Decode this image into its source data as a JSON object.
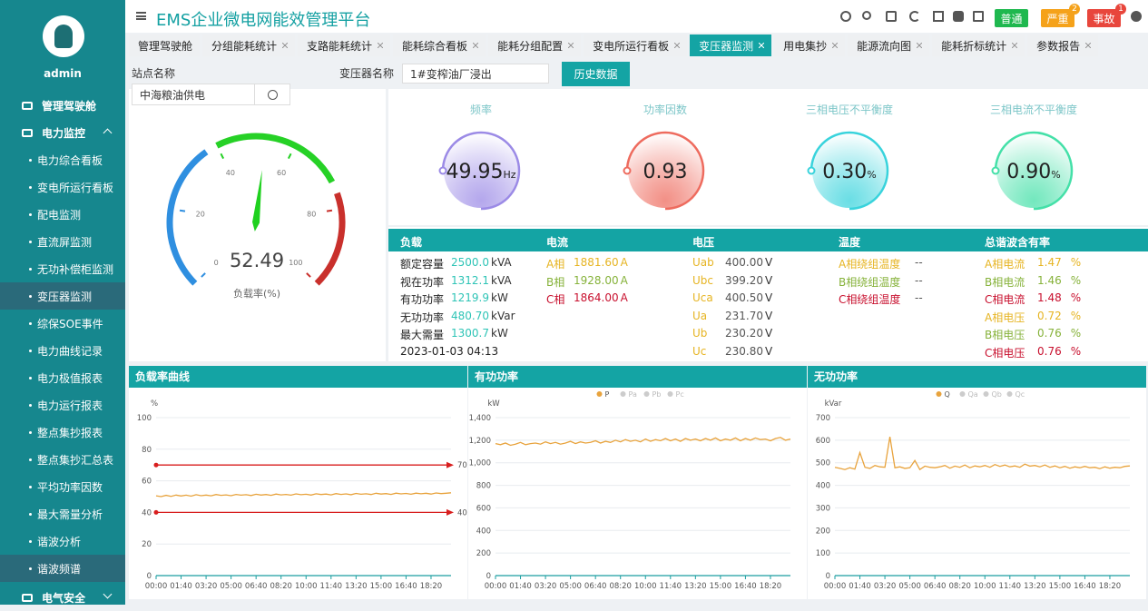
{
  "sidebar": {
    "user": "admin",
    "menu": [
      {
        "label": "管理驾驶舱",
        "level": 1
      },
      {
        "label": "电力监控",
        "level": 1,
        "expanded": true
      },
      {
        "label": "电力综合看板",
        "level": 2
      },
      {
        "label": "变电所运行看板",
        "level": 2
      },
      {
        "label": "配电监测",
        "level": 2
      },
      {
        "label": "直流屏监测",
        "level": 2
      },
      {
        "label": "无功补偿柜监测",
        "level": 2
      },
      {
        "label": "变压器监测",
        "level": 2,
        "highlighted": true
      },
      {
        "label": "综保SOE事件",
        "level": 2
      },
      {
        "label": "电力曲线记录",
        "level": 2
      },
      {
        "label": "电力极值报表",
        "level": 2
      },
      {
        "label": "电力运行报表",
        "level": 2
      },
      {
        "label": "整点集抄报表",
        "level": 2
      },
      {
        "label": "整点集抄汇总表",
        "level": 2
      },
      {
        "label": "平均功率因数",
        "level": 2
      },
      {
        "label": "最大需量分析",
        "level": 2
      },
      {
        "label": "谐波分析",
        "level": 2
      },
      {
        "label": "谐波频谱",
        "level": 2,
        "highlighted": true
      },
      {
        "label": "电气安全",
        "level": 1,
        "expanded": false
      }
    ]
  },
  "header": {
    "title": "EMS企业微电网能效管理平台",
    "buttons": [
      {
        "label": "普通",
        "color": "#1fb84f"
      },
      {
        "label": "严重",
        "color": "#f5a21a",
        "badge": 2
      },
      {
        "label": "事故",
        "color": "#e8463c",
        "badge": 1
      }
    ]
  },
  "tabs": {
    "items": [
      "管理驾驶舱",
      "分组能耗统计",
      "支路能耗统计",
      "能耗综合看板",
      "能耗分组配置",
      "变电所运行看板",
      "变压器监测",
      "用电集抄",
      "能源流向图",
      "能耗折标统计",
      "参数报告"
    ],
    "active": 6
  },
  "filters": {
    "station_label": "站点名称",
    "station_value": "中海粮油供电",
    "transformer_label": "变压器名称",
    "transformer_value": "1#变榨油厂浸出",
    "history_button": "历史数据"
  },
  "gauge": {
    "value": 52.49,
    "label": "负载率(%)",
    "min": 0,
    "max": 100,
    "ticks": [
      0,
      20,
      40,
      60,
      80,
      100
    ]
  },
  "indicators": [
    {
      "title": "频率",
      "value": "49.95",
      "unit": "Hz",
      "color": "#9b8ae6"
    },
    {
      "title": "功率因数",
      "value": "0.93",
      "color": "#ee6b5e"
    },
    {
      "title": "三相电压不平衡度",
      "value": "0.30",
      "unit": "%",
      "color": "#38d3dc"
    },
    {
      "title": "三相电流不平衡度",
      "value": "0.90",
      "unit": "%",
      "color": "#44e0a8"
    }
  ],
  "table": {
    "headers": [
      "负载",
      "电流",
      "电压",
      "温度",
      "总谐波含有率"
    ],
    "columns": [
      [
        {
          "label": "额定容量",
          "value": "2500.0",
          "unit": "kVA"
        },
        {
          "label": "视在功率",
          "value": "1312.1",
          "unit": "kVA"
        },
        {
          "label": "有功功率",
          "value": "1219.9",
          "unit": "kW"
        },
        {
          "label": "无功功率",
          "value": "480.70",
          "unit": "kVar"
        },
        {
          "label": "最大需量",
          "value": "1300.7",
          "unit": "kW"
        },
        {
          "label": "2023-01-03 04:13"
        }
      ],
      [
        {
          "label": "A相",
          "value": "1881.60",
          "unit": "A"
        },
        {
          "label": "B相",
          "value": "1928.00",
          "unit": "A"
        },
        {
          "label": "C相",
          "value": "1864.00",
          "unit": "A"
        }
      ],
      [
        {
          "label": "Uab",
          "value": "400.00",
          "unit": "V"
        },
        {
          "label": "Ubc",
          "value": "399.20",
          "unit": "V"
        },
        {
          "label": "Uca",
          "value": "400.50",
          "unit": "V"
        },
        {
          "label": "Ua",
          "value": "231.70",
          "unit": "V"
        },
        {
          "label": "Ub",
          "value": "230.20",
          "unit": "V"
        },
        {
          "label": "Uc",
          "value": "230.80",
          "unit": "V"
        }
      ],
      [
        {
          "label": "A相绕组温度",
          "value": "--"
        },
        {
          "label": "B相绕组温度",
          "value": "--"
        },
        {
          "label": "C相绕组温度",
          "value": "--"
        }
      ],
      [
        {
          "label": "A相电流",
          "value": "1.47",
          "unit": "%"
        },
        {
          "label": "B相电流",
          "value": "1.46",
          "unit": "%"
        },
        {
          "label": "C相电流",
          "value": "1.48",
          "unit": "%"
        },
        {
          "label": "A相电压",
          "value": "0.72",
          "unit": "%"
        },
        {
          "label": "B相电压",
          "value": "0.76",
          "unit": "%"
        },
        {
          "label": "C相电压",
          "value": "0.76",
          "unit": "%"
        }
      ]
    ]
  },
  "chart_data": [
    {
      "type": "line",
      "title": "负载率曲线",
      "ylabel": "%",
      "ylim": [
        0,
        100
      ],
      "yticks": [
        0,
        20,
        40,
        60,
        80,
        100
      ],
      "grid": true,
      "mark_lines": [
        70,
        40
      ],
      "mark_color": "#d81e1e",
      "categories": [
        "00:00",
        null,
        null,
        null,
        null,
        "01:40",
        null,
        null,
        null,
        null,
        "03:20",
        null,
        null,
        null,
        null,
        "05:00",
        null,
        null,
        null,
        null,
        "06:40",
        null,
        null,
        null,
        null,
        "08:20",
        null,
        null,
        null,
        null,
        "10:00",
        null,
        null,
        null,
        null,
        "11:40",
        null,
        null,
        null,
        null,
        "13:20",
        null,
        null,
        null,
        null,
        "15:00",
        null,
        null,
        null,
        null,
        "16:40",
        null,
        null,
        null,
        null,
        "18:20",
        null,
        null,
        null,
        null
      ],
      "series": [
        {
          "color": "#e8a33d",
          "values": [
            50.5,
            50,
            50.8,
            50.2,
            51,
            50.4,
            50.9,
            50.3,
            51.2,
            50.6,
            51,
            50.5,
            51.3,
            50.8,
            51.1,
            50.6,
            51.4,
            50.9,
            51.2,
            50.7,
            51.5,
            51,
            51.3,
            50.8,
            51.6,
            51.1,
            51.4,
            50.9,
            51.7,
            51.2,
            51.5,
            51,
            51.8,
            51.3,
            51.6,
            51.1,
            51.9,
            51.4,
            51.7,
            51.2,
            52,
            51.5,
            51.8,
            51.3,
            52.1,
            51.6,
            51.9,
            51.4,
            52.2,
            51.7,
            52,
            51.5,
            52.2,
            51.8,
            52.1,
            51.6,
            52.3,
            51.9,
            52.1,
            52.4
          ]
        }
      ]
    },
    {
      "type": "line",
      "title": "有功功率",
      "ylabel": "kW",
      "ylim": [
        0,
        1400
      ],
      "yticks": [
        0,
        200,
        400,
        600,
        800,
        {
          "value": 1000,
          "label": "1,000"
        },
        {
          "value": 1200,
          "label": "1,200"
        },
        {
          "value": 1400,
          "label": "1,400"
        }
      ],
      "grid": true,
      "categories": [
        "00:00",
        null,
        null,
        null,
        null,
        "01:40",
        null,
        null,
        null,
        null,
        "03:20",
        null,
        null,
        null,
        null,
        "05:00",
        null,
        null,
        null,
        null,
        "06:40",
        null,
        null,
        null,
        null,
        "08:20",
        null,
        null,
        null,
        null,
        "10:00",
        null,
        null,
        null,
        null,
        "11:40",
        null,
        null,
        null,
        null,
        "13:20",
        null,
        null,
        null,
        null,
        "15:00",
        null,
        null,
        null,
        null,
        "16:40",
        null,
        null,
        null,
        null,
        "18:20",
        null,
        null,
        null,
        null
      ],
      "series": [
        {
          "name": "P",
          "color": "#e8a33d",
          "values": [
            1170,
            1160,
            1175,
            1155,
            1165,
            1180,
            1160,
            1170,
            1175,
            1165,
            1185,
            1170,
            1180,
            1165,
            1175,
            1190,
            1170,
            1185,
            1175,
            1180,
            1195,
            1175,
            1190,
            1180,
            1200,
            1185,
            1205,
            1190,
            1200,
            1185,
            1210,
            1190,
            1205,
            1195,
            1215,
            1195,
            1210,
            1190,
            1215,
            1200,
            1210,
            1195,
            1215,
            1200,
            1220,
            1195,
            1210,
            1200,
            1220,
            1195,
            1215,
            1200,
            1220,
            1205,
            1210,
            1195,
            1215,
            1225,
            1200,
            1210
          ]
        },
        {
          "name": "Pa",
          "color": "#cccccc"
        },
        {
          "name": "Pb",
          "color": "#cccccc"
        },
        {
          "name": "Pc",
          "color": "#cccccc"
        }
      ]
    },
    {
      "type": "line",
      "title": "无功功率",
      "ylabel": "kVar",
      "ylim": [
        0,
        700
      ],
      "yticks": [
        0,
        100,
        200,
        300,
        400,
        500,
        600,
        700
      ],
      "grid": true,
      "categories": [
        "00:00",
        null,
        null,
        null,
        null,
        "01:40",
        null,
        null,
        null,
        null,
        "03:20",
        null,
        null,
        null,
        null,
        "05:00",
        null,
        null,
        null,
        null,
        "06:40",
        null,
        null,
        null,
        null,
        "08:20",
        null,
        null,
        null,
        null,
        "10:00",
        null,
        null,
        null,
        null,
        "11:40",
        null,
        null,
        null,
        null,
        "13:20",
        null,
        null,
        null,
        null,
        "15:00",
        null,
        null,
        null,
        null,
        "16:40",
        null,
        null,
        null,
        null,
        "18:20",
        null,
        null,
        null,
        null
      ],
      "series": [
        {
          "name": "Q",
          "color": "#e8a33d",
          "values": [
            480,
            475,
            470,
            478,
            472,
            545,
            480,
            475,
            488,
            482,
            480,
            615,
            478,
            482,
            475,
            478,
            510,
            470,
            485,
            480,
            478,
            482,
            488,
            476,
            485,
            480,
            490,
            478,
            486,
            482,
            488,
            480,
            492,
            484,
            490,
            482,
            486,
            480,
            494,
            485,
            488,
            482,
            490,
            480,
            486,
            478,
            484,
            476,
            482,
            478,
            484,
            478,
            480,
            474,
            482,
            476,
            480,
            478,
            484,
            486
          ]
        },
        {
          "name": "Qa",
          "color": "#cccccc"
        },
        {
          "name": "Qb",
          "color": "#cccccc"
        },
        {
          "name": "Qc",
          "color": "#cccccc"
        }
      ]
    }
  ]
}
